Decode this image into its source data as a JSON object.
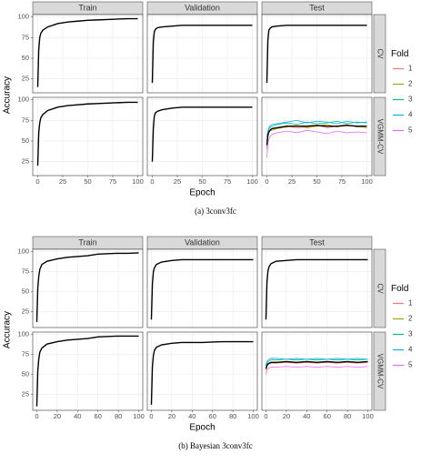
{
  "chart_data": [
    {
      "type": "line",
      "caption": "(a)  3conv3fc",
      "columns": [
        "Train",
        "Validation",
        "Test"
      ],
      "rows": [
        "CV",
        "VGMM-CV"
      ],
      "xlabel": "Epoch",
      "ylabel": "Accuracy",
      "xlim": [
        -5,
        105
      ],
      "ylim": [
        8,
        103
      ],
      "xticks": [
        0,
        25,
        50,
        75,
        100
      ],
      "yticks": [
        25,
        50,
        75,
        100
      ],
      "grid": true,
      "legend": {
        "title": "Fold",
        "items": [
          {
            "name": "1",
            "color": "#F8766D"
          },
          {
            "name": "2",
            "color": "#A3A500"
          },
          {
            "name": "3",
            "color": "#00BF7D"
          },
          {
            "name": "4",
            "color": "#00B0F6"
          },
          {
            "name": "5",
            "color": "#E76BF3"
          }
        ]
      },
      "x": [
        0,
        1,
        2,
        3,
        5,
        10,
        20,
        30,
        40,
        50,
        60,
        70,
        80,
        90,
        100
      ],
      "panels": [
        [
          {
            "series": [
              {
                "color": "#000000",
                "values": [
                  15,
                  60,
                  75,
                  80,
                  84,
                  88,
                  92,
                  94,
                  95,
                  96,
                  96.5,
                  97,
                  97.5,
                  98,
                  98
                ]
              }
            ]
          },
          {
            "series": [
              {
                "color": "#000000",
                "values": [
                  20,
                  70,
                  82,
                  85,
                  87,
                  88,
                  89,
                  90,
                  90,
                  90,
                  90,
                  90,
                  90,
                  90,
                  90
                ]
              }
            ]
          },
          {
            "series": [
              {
                "color": "#000000",
                "values": [
                  20,
                  72,
                  84,
                  86,
                  88,
                  89,
                  90,
                  90,
                  90,
                  90,
                  90,
                  90,
                  90,
                  90,
                  90
                ]
              }
            ]
          }
        ],
        [
          {
            "series": [
              {
                "color": "#000000",
                "values": [
                  20,
                  60,
                  72,
                  78,
                  82,
                  87,
                  91,
                  93,
                  94,
                  95,
                  95.5,
                  96,
                  96.5,
                  97,
                  97
                ]
              }
            ]
          },
          {
            "series": [
              {
                "color": "#000000",
                "values": [
                  25,
                  65,
                  80,
                  84,
                  86,
                  88,
                  90,
                  91,
                  91,
                  91,
                  91,
                  91,
                  91,
                  91,
                  91
                ]
              }
            ]
          },
          {
            "series": [
              {
                "color": "#F8766D",
                "values": [
                  40,
                  58,
                  62,
                  63,
                  65,
                  66,
                  68,
                  66,
                  67,
                  69,
                  66,
                  68,
                  70,
                  67,
                  68
                ]
              },
              {
                "color": "#A3A500",
                "values": [
                  45,
                  55,
                  60,
                  62,
                  63,
                  65,
                  67,
                  69,
                  66,
                  68,
                  70,
                  67,
                  69,
                  68,
                  66
                ]
              },
              {
                "color": "#00BF7D",
                "values": [
                  50,
                  60,
                  65,
                  66,
                  68,
                  70,
                  72,
                  70,
                  73,
                  71,
                  72,
                  74,
                  71,
                  73,
                  72
                ]
              },
              {
                "color": "#00B0F6",
                "values": [
                  55,
                  62,
                  66,
                  68,
                  70,
                  71,
                  73,
                  75,
                  72,
                  74,
                  73,
                  71,
                  74,
                  72,
                  73
                ]
              },
              {
                "color": "#E76BF3",
                "values": [
                  30,
                  48,
                  52,
                  55,
                  58,
                  60,
                  62,
                  60,
                  63,
                  61,
                  59,
                  62,
                  60,
                  61,
                  60
                ]
              },
              {
                "color": "#000000",
                "values": [
                  45,
                  57,
                  61,
                  63,
                  65,
                  66,
                  68,
                  68,
                  68,
                  69,
                  68,
                  68,
                  69,
                  68,
                  68
                ]
              }
            ]
          }
        ]
      ]
    },
    {
      "type": "line",
      "caption": "(b)  Bayesian 3conv3fc",
      "columns": [
        "Train",
        "Validation",
        "Test"
      ],
      "rows": [
        "CV",
        "VGMM-CV"
      ],
      "xlabel": "Epoch",
      "ylabel": "Accuracy",
      "xlim": [
        -4,
        104
      ],
      "ylim": [
        5,
        103
      ],
      "xticks": [
        0,
        20,
        40,
        60,
        80,
        100
      ],
      "yticks": [
        25,
        50,
        75,
        100
      ],
      "grid": true,
      "legend": {
        "title": "Fold",
        "items": [
          {
            "name": "1",
            "color": "#F8766D"
          },
          {
            "name": "2",
            "color": "#A3A500"
          },
          {
            "name": "3",
            "color": "#00BF7D"
          },
          {
            "name": "4",
            "color": "#00B0F6"
          },
          {
            "name": "5",
            "color": "#E76BF3"
          }
        ]
      },
      "x": [
        0,
        1,
        2,
        3,
        5,
        10,
        20,
        30,
        40,
        50,
        60,
        70,
        80,
        90,
        100
      ],
      "panels": [
        [
          {
            "series": [
              {
                "color": "#000000",
                "values": [
                  12,
                  55,
                  70,
                  78,
                  84,
                  88,
                  91,
                  93,
                  94,
                  95,
                  97,
                  97.5,
                  98,
                  98,
                  98.5
                ]
              }
            ]
          },
          {
            "series": [
              {
                "color": "#000000",
                "values": [
                  15,
                  60,
                  75,
                  80,
                  84,
                  87,
                  89,
                  90,
                  90,
                  90,
                  90,
                  90,
                  90,
                  90,
                  90
                ]
              }
            ]
          },
          {
            "series": [
              {
                "color": "#000000",
                "values": [
                  15,
                  62,
                  76,
                  81,
                  85,
                  88,
                  89,
                  90,
                  90,
                  90,
                  90,
                  90,
                  90,
                  90,
                  90
                ]
              }
            ]
          }
        ],
        [
          {
            "series": [
              {
                "color": "#000000",
                "values": [
                  10,
                  55,
                  70,
                  78,
                  83,
                  88,
                  91,
                  93,
                  94,
                  95,
                  97,
                  97.5,
                  98,
                  98,
                  98
                ]
              }
            ]
          },
          {
            "series": [
              {
                "color": "#000000",
                "values": [
                  12,
                  60,
                  74,
                  80,
                  84,
                  87,
                  89,
                  90,
                  90,
                  90,
                  90.5,
                  91,
                  91,
                  91,
                  91
                ]
              }
            ]
          },
          {
            "series": [
              {
                "color": "#F8766D",
                "values": [
                  55,
                  60,
                  62,
                  63,
                  64,
                  64,
                  65,
                  64,
                  65,
                  64,
                  65,
                  64,
                  65,
                  64,
                  65
                ]
              },
              {
                "color": "#A3A500",
                "values": [
                  57,
                  62,
                  63,
                  64,
                  65,
                  65,
                  66,
                  65,
                  66,
                  65,
                  66,
                  65,
                  66,
                  65,
                  66
                ]
              },
              {
                "color": "#00BF7D",
                "values": [
                  60,
                  64,
                  66,
                  67,
                  68,
                  68,
                  69,
                  68,
                  69,
                  68,
                  69,
                  68,
                  69,
                  68,
                  69
                ]
              },
              {
                "color": "#00B0F6",
                "values": [
                  62,
                  66,
                  68,
                  69,
                  70,
                  70,
                  69,
                  70,
                  69,
                  70,
                  69,
                  70,
                  69,
                  70,
                  69
                ]
              },
              {
                "color": "#E76BF3",
                "values": [
                  50,
                  55,
                  57,
                  58,
                  59,
                  59,
                  60,
                  59,
                  60,
                  59,
                  60,
                  59,
                  60,
                  59,
                  60
                ]
              },
              {
                "color": "#000000",
                "values": [
                  57,
                  61,
                  63,
                  64,
                  65,
                  65,
                  66,
                  65,
                  66,
                  65,
                  66,
                  65,
                  66,
                  65,
                  66
                ]
              }
            ]
          }
        ]
      ]
    }
  ]
}
